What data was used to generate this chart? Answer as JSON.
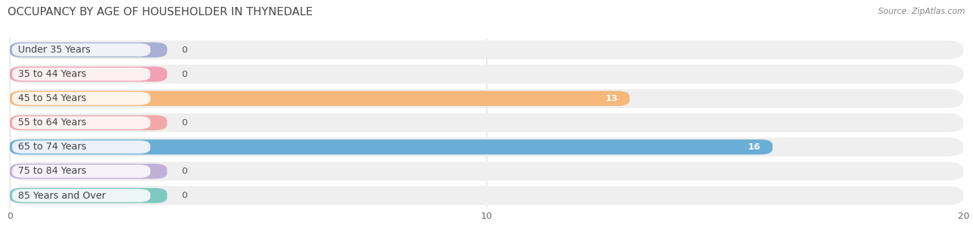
{
  "title": "OCCUPANCY BY AGE OF HOUSEHOLDER IN THYNEDALE",
  "source": "Source: ZipAtlas.com",
  "categories": [
    "Under 35 Years",
    "35 to 44 Years",
    "45 to 54 Years",
    "55 to 64 Years",
    "65 to 74 Years",
    "75 to 84 Years",
    "85 Years and Over"
  ],
  "values": [
    0,
    0,
    13,
    0,
    16,
    0,
    0
  ],
  "bar_colors": [
    "#a8aed4",
    "#f2a0b5",
    "#f5b87a",
    "#f2a8a8",
    "#6aaed6",
    "#c0b0d8",
    "#7ec8c0"
  ],
  "xlim": [
    0,
    20
  ],
  "xticks": [
    0,
    10,
    20
  ],
  "title_fontsize": 11.5,
  "label_fontsize": 10,
  "value_fontsize": 9.5,
  "bg_color": "#ffffff",
  "row_bg_color": "#efefef",
  "grid_color": "#d8d8d8",
  "zero_bar_stub": 3.3
}
